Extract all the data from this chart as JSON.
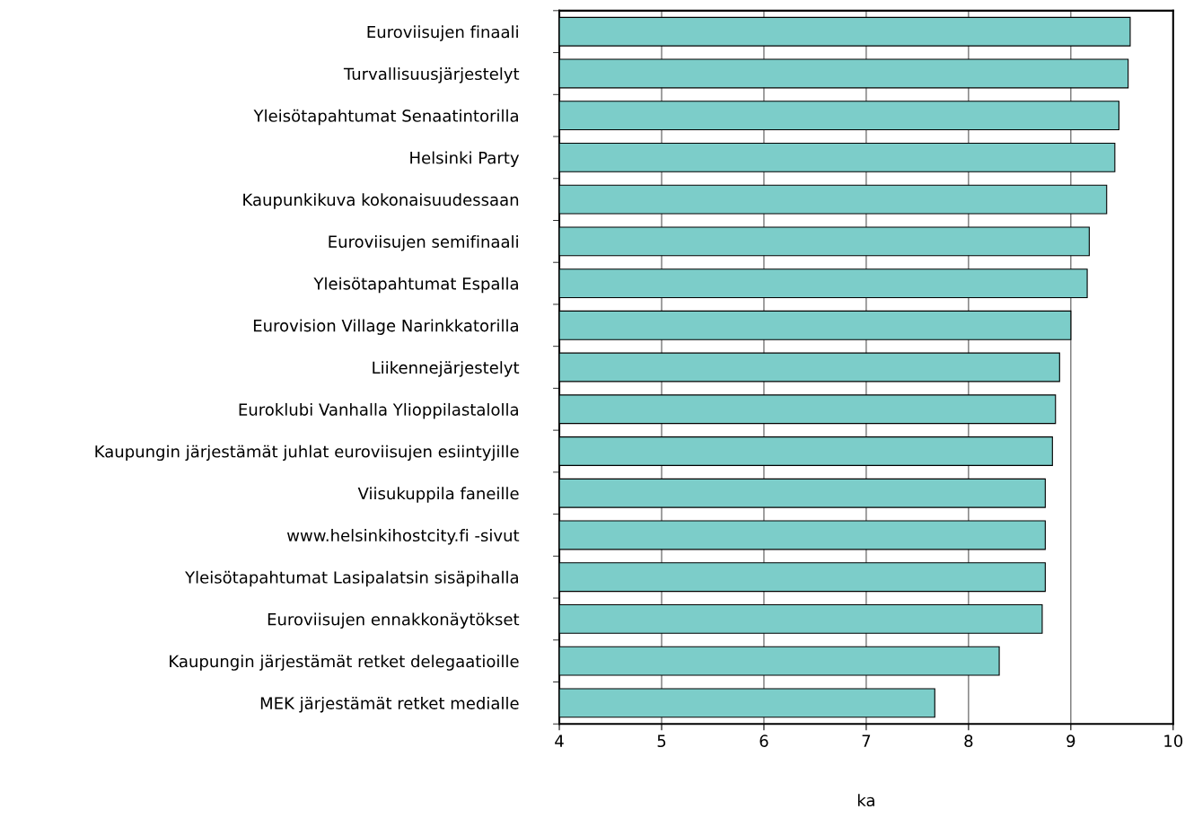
{
  "chart_data": {
    "type": "bar",
    "orientation": "horizontal",
    "xlabel": "ka",
    "categories": [
      "Euroviisujen finaali",
      "Turvallisuusjärjestelyt",
      "Yleisötapahtumat Senaatintorilla",
      "Helsinki Party",
      "Kaupunkikuva kokonaisuudessaan",
      "Euroviisujen semifinaali",
      "Yleisötapahtumat Espalla",
      "Eurovision Village Narinkkatorilla",
      "Liikennejärjestelyt",
      "Euroklubi Vanhalla Ylioppilastalolla",
      "Kaupungin järjestämät juhlat euroviisujen esiintyjille",
      "Viisukuppila faneille",
      "www.helsinkihostcity.fi -sivut",
      "Yleisötapahtumat Lasipalatsin sisäpihalla",
      "Euroviisujen ennakkonäytökset",
      "Kaupungin järjestämät retket delegaatioille",
      "MEK järjestämät retket medialle"
    ],
    "values": [
      9.58,
      9.56,
      9.47,
      9.43,
      9.35,
      9.18,
      9.16,
      9.0,
      8.89,
      8.85,
      8.82,
      8.75,
      8.75,
      8.75,
      8.72,
      8.3,
      7.67
    ],
    "color": "#7ccdc9",
    "xlim": [
      4,
      10
    ],
    "xticks": [
      4,
      5,
      6,
      7,
      8,
      9,
      10
    ],
    "grid": "x",
    "legend": false
  }
}
